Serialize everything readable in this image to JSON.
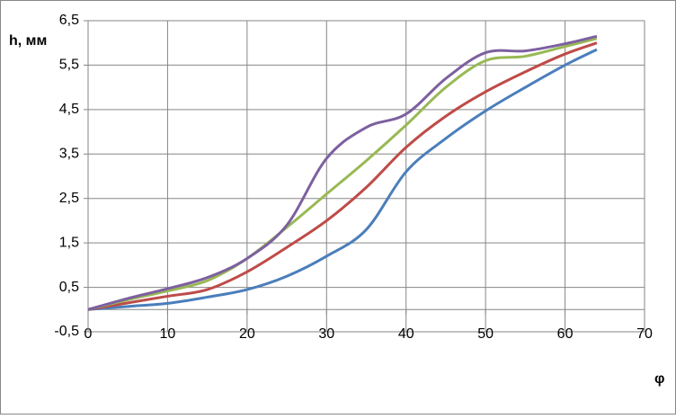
{
  "chart_data": {
    "type": "line",
    "y_label": "h, мм",
    "x_label": "φ",
    "x": [
      0,
      5,
      10,
      15,
      20,
      25,
      30,
      35,
      40,
      45,
      50,
      55,
      60,
      64
    ],
    "series": [
      {
        "color": "#4a7ebb",
        "values": [
          0,
          0.07,
          0.14,
          0.28,
          0.45,
          0.75,
          1.2,
          1.8,
          3.1,
          3.85,
          4.47,
          5.0,
          5.5,
          5.85
        ]
      },
      {
        "color": "#be4b48",
        "values": [
          0,
          0.15,
          0.3,
          0.45,
          0.85,
          1.4,
          2.0,
          2.75,
          3.65,
          4.35,
          4.9,
          5.35,
          5.75,
          6.0
        ]
      },
      {
        "color": "#98b954",
        "values": [
          0,
          0.22,
          0.42,
          0.65,
          1.15,
          1.85,
          2.6,
          3.35,
          4.15,
          5.0,
          5.6,
          5.7,
          5.92,
          6.1
        ]
      },
      {
        "color": "#7d60a0",
        "values": [
          0,
          0.25,
          0.47,
          0.72,
          1.15,
          1.9,
          3.4,
          4.1,
          4.4,
          5.2,
          5.78,
          5.82,
          5.98,
          6.15
        ]
      }
    ],
    "xlim": [
      0,
      70
    ],
    "xticks": [
      0,
      10,
      20,
      30,
      40,
      50,
      60,
      70
    ],
    "ylim": [
      -0.5,
      6.5
    ],
    "yticks": [
      {
        "value": -0.5,
        "label": "-0,5"
      },
      {
        "value": 0.5,
        "label": "0,5"
      },
      {
        "value": 1.5,
        "label": "1,5"
      },
      {
        "value": 2.5,
        "label": "2,5"
      },
      {
        "value": 3.5,
        "label": "3,5"
      },
      {
        "value": 4.5,
        "label": "4,5"
      },
      {
        "value": 5.5,
        "label": "5,5"
      },
      {
        "value": 6.5,
        "label": "6,5"
      }
    ],
    "grid": true
  }
}
